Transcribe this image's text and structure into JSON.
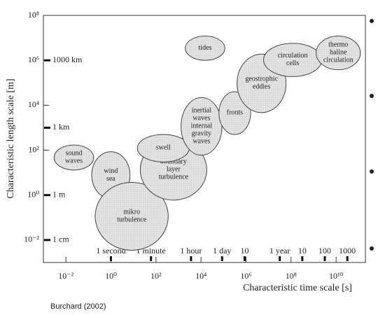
{
  "chart_data": {
    "type": "scale-diagram",
    "ylabel": "Characteristic length scale [m]",
    "xlabel": "Characteristic time scale [s]",
    "source": "Burchard (2002)",
    "xscale": "log",
    "yscale": "log",
    "xlim": [
      0.001,
      200000000000
    ],
    "ylim": [
      0.001,
      100000000
    ],
    "xticks": [
      {
        "value": 0.01,
        "label": "10⁻²"
      },
      {
        "value": 1,
        "label": "10⁰"
      },
      {
        "value": 100,
        "label": "10²"
      },
      {
        "value": 10000,
        "label": "10⁴"
      },
      {
        "value": 1000000,
        "label": "10⁶"
      },
      {
        "value": 100000000,
        "label": "10⁸"
      },
      {
        "value": 10000000000,
        "label": "10¹⁰"
      }
    ],
    "yticks": [
      {
        "value": 100000000,
        "label": "10⁸"
      },
      {
        "value": 1000000,
        "label": "10⁶"
      },
      {
        "value": 10000,
        "label": "10⁴"
      },
      {
        "value": 100,
        "label": "10²"
      },
      {
        "value": 1,
        "label": "10⁰"
      },
      {
        "value": 0.01,
        "label": "10⁻²"
      }
    ],
    "time_markers": [
      {
        "value": 1,
        "label": "1 second"
      },
      {
        "value": 60,
        "label": "1 minute"
      },
      {
        "value": 3600,
        "label": "1 hour"
      },
      {
        "value": 86400,
        "label": "1 day"
      },
      {
        "value": 864000,
        "label": "10"
      },
      {
        "value": 31500000,
        "label": "1 year"
      },
      {
        "value": 315000000,
        "label": "10"
      },
      {
        "value": 3150000000,
        "label": "100"
      },
      {
        "value": 31500000000,
        "label": "1000"
      }
    ],
    "length_markers": [
      {
        "value": 1000000,
        "label": "1000 km"
      },
      {
        "value": 1000,
        "label": "1 km"
      },
      {
        "value": 1,
        "label": "1 m"
      },
      {
        "value": 0.01,
        "label": "1 cm"
      }
    ],
    "regimes": [
      {
        "label": [
          "sound",
          "waves"
        ],
        "t": [
          0.003,
          0.17
        ],
        "l": [
          13,
          170
        ]
      },
      {
        "label": [
          "wind",
          "sea"
        ],
        "t": [
          0.14,
          7
        ],
        "l": [
          0.7,
          85
        ]
      },
      {
        "label": [
          "mikro",
          "turbulence"
        ],
        "t": [
          0.2,
          350
        ],
        "l": [
          0.0035,
          3.7
        ]
      },
      {
        "label": [
          "boundary",
          "layer",
          "turbulence"
        ],
        "t": [
          20,
          18000
        ],
        "l": [
          0.6,
          300
        ]
      },
      {
        "label": [
          "swell"
        ],
        "t": [
          15,
          3000
        ],
        "l": [
          30,
          500
        ]
      },
      {
        "label": [
          "tides"
        ],
        "t": [
          2000,
          115000
        ],
        "l": [
          1000000,
          12000000
        ]
      },
      {
        "label": [
          "inertial",
          "waves",
          "internal",
          "gravity",
          "waves"
        ],
        "t": [
          1300,
          85000
        ],
        "l": [
          60,
          22000
        ]
      },
      {
        "label": [
          "fronts"
        ],
        "t": [
          63000,
          1600000
        ],
        "l": [
          500,
          40000
        ]
      },
      {
        "label": [
          "geostrophic",
          "eddies"
        ],
        "t": [
          400000,
          60000000
        ],
        "l": [
          4700,
          1900000
        ]
      },
      {
        "label": [
          "circulation",
          "cells"
        ],
        "t": [
          6000000,
          2300000000
        ],
        "l": [
          190000,
          5700000
        ]
      },
      {
        "label": [
          "thermo",
          "haline",
          "circulation"
        ],
        "t": [
          1300000000,
          120000000000
        ],
        "l": [
          380000,
          12000000
        ]
      }
    ]
  }
}
